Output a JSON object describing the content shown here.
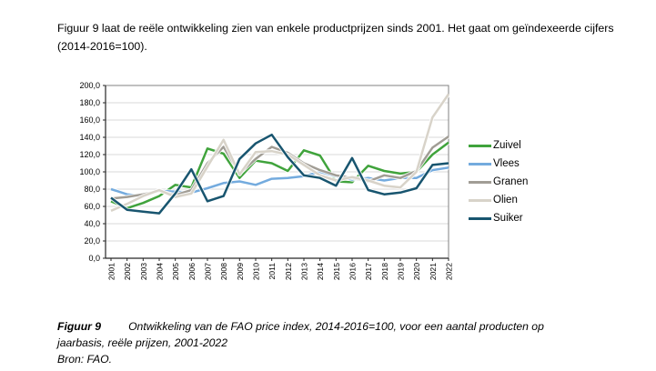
{
  "intro_text": "Figuur 9 laat de reële ontwikkeling zien van enkele productprijzen sinds 2001. Het gaat om geïndexeerde cijfers (2014-2016=100).",
  "caption": {
    "label": "Figuur 9",
    "text": "Ontwikkeling van de FAO price index, 2014-2016=100, voor een aantal producten op jaarbasis, reële prijzen, 2001-2022",
    "source": "Bron: FAO."
  },
  "chart_data": {
    "type": "line",
    "title": "",
    "xlabel": "",
    "ylabel": "",
    "x": [
      2001,
      2002,
      2003,
      2004,
      2005,
      2006,
      2007,
      2008,
      2009,
      2010,
      2011,
      2012,
      2013,
      2014,
      2015,
      2016,
      2017,
      2018,
      2019,
      2020,
      2021,
      2022
    ],
    "series": [
      {
        "name": "Zuivel",
        "color": "#40A33C",
        "values": [
          66,
          58,
          64,
          72,
          85,
          82,
          127,
          121,
          93,
          113,
          110,
          101,
          125,
          119,
          89,
          88,
          107,
          101,
          98,
          100,
          120,
          134
        ]
      },
      {
        "name": "Vlees",
        "color": "#74ABDE",
        "values": [
          80,
          74,
          72,
          78,
          77,
          76,
          81,
          87,
          89,
          85,
          92,
          93,
          95,
          100,
          95,
          91,
          93,
          90,
          93,
          93,
          102,
          105
        ]
      },
      {
        "name": "Granen",
        "color": "#A19D95",
        "values": [
          69,
          71,
          74,
          78,
          73,
          79,
          110,
          129,
          98,
          115,
          129,
          122,
          110,
          102,
          96,
          93,
          89,
          96,
          93,
          101,
          128,
          141
        ]
      },
      {
        "name": "Olien",
        "color": "#D8D3C9",
        "values": [
          55,
          63,
          72,
          79,
          71,
          75,
          106,
          137,
          97,
          123,
          124,
          120,
          108,
          96,
          90,
          94,
          90,
          84,
          82,
          100,
          163,
          190
        ]
      },
      {
        "name": "Suiker",
        "color": "#18556F",
        "values": [
          70,
          56,
          54,
          52,
          75,
          103,
          66,
          72,
          115,
          133,
          143,
          117,
          96,
          93,
          84,
          116,
          79,
          74,
          76,
          81,
          108,
          110
        ]
      }
    ],
    "ylim": [
      0,
      200
    ],
    "ytick_step": 20,
    "y_tick_labels": [
      "0,0",
      "20,0",
      "40,0",
      "60,0",
      "80,0",
      "100,0",
      "120,0",
      "140,0",
      "160,0",
      "180,0",
      "200,0"
    ],
    "grid": true,
    "legend_position": "right",
    "gridline_color": "#D9D9D9",
    "plot_border_color": "#808080",
    "axis_color": "#262626"
  }
}
